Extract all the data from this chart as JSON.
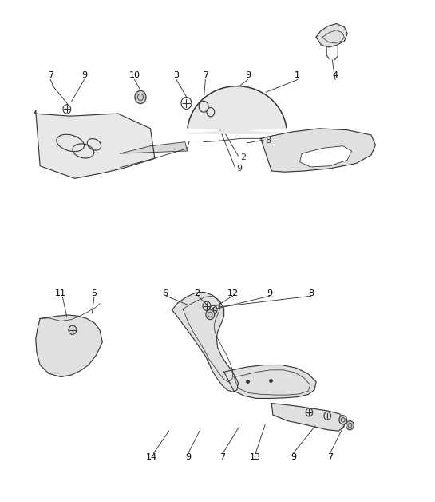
{
  "bg_color": "#ffffff",
  "line_color": "#333333",
  "label_color": "#000000",
  "fig_width": 5.45,
  "fig_height": 6.28,
  "dpi": 100
}
